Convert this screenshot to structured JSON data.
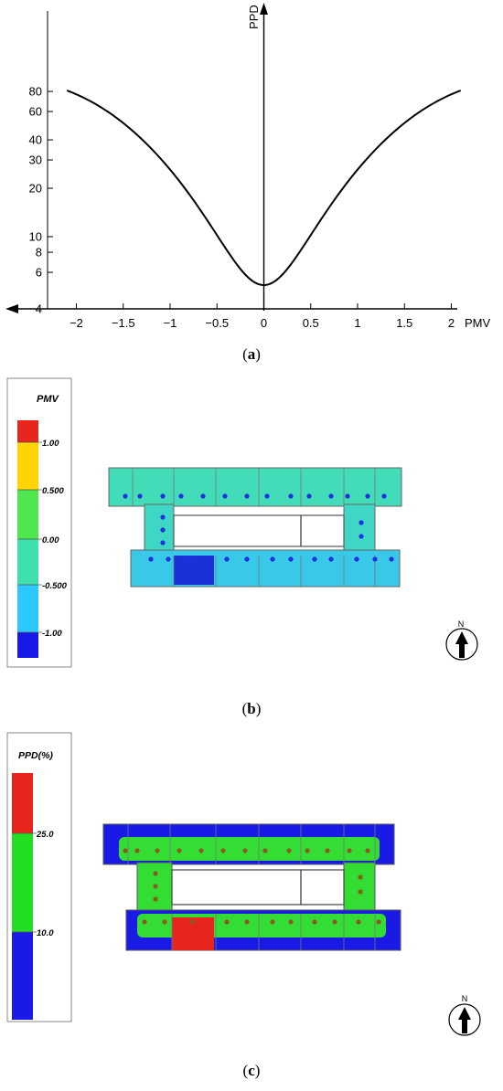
{
  "panel_a": {
    "caption_letter": "a",
    "xlabel": "PMV",
    "ylabel": "PPD",
    "x_ticks": [
      "−2",
      "−1.5",
      "−1",
      "−0.5",
      "0",
      "0.5",
      "1",
      "1.5",
      "2"
    ],
    "y_ticks": [
      "80",
      "60",
      "40",
      "30",
      "20",
      "10",
      "8",
      "6",
      "4"
    ]
  },
  "panel_b": {
    "caption_letter": "b",
    "legend_title": "PMV",
    "legend_labels": [
      "1.00",
      "0.500",
      "0.00",
      "-0.500",
      "-1.00"
    ],
    "north_label": "N"
  },
  "panel_c": {
    "caption_letter": "c",
    "legend_title": "PPD(%)",
    "legend_labels": [
      "25.0",
      "10.0"
    ],
    "north_label": "N"
  },
  "chart_data": [
    {
      "type": "line",
      "xlabel": "PMV",
      "ylabel": "PPD",
      "y_scale": "log",
      "xlim": [
        -2.2,
        2.2
      ],
      "ylim": [
        4,
        100
      ],
      "x_ticks": [
        -2,
        -1.5,
        -1,
        -0.5,
        0,
        0.5,
        1,
        1.5,
        2
      ],
      "y_ticks": [
        4,
        6,
        8,
        10,
        20,
        30,
        40,
        60,
        80
      ],
      "series": [
        {
          "x": [
            -2.1,
            -2.0,
            -1.75,
            -1.5,
            -1.25,
            -1.0,
            -0.75,
            -0.5,
            -0.25,
            0,
            0.25,
            0.5,
            0.75,
            1.0,
            1.25,
            1.5,
            1.75,
            2.0,
            2.1
          ],
          "y": [
            81.2,
            76.8,
            64.7,
            50.8,
            37.6,
            26.1,
            16.9,
            10.2,
            6.3,
            5.0,
            6.3,
            10.2,
            16.9,
            26.1,
            37.6,
            50.8,
            64.7,
            76.8,
            81.2
          ]
        }
      ],
      "grid": false
    },
    {
      "type": "heatmap",
      "legend_title": "PMV",
      "legend_labels": [
        1.0,
        0.5,
        0.0,
        -0.5,
        -1.0
      ],
      "legend_colors": [
        "#e8251c",
        "#ffd400",
        "#33dd33",
        "#33ddaa",
        "#22c8ff",
        "#1a1ae6"
      ],
      "north_label": "N"
    },
    {
      "type": "heatmap",
      "legend_title": "PPD(%)",
      "legend_labels": [
        25.0,
        10.0
      ],
      "legend_colors": [
        "#e8251c",
        "#22dd22",
        "#1a1ae6"
      ],
      "north_label": "N"
    }
  ]
}
